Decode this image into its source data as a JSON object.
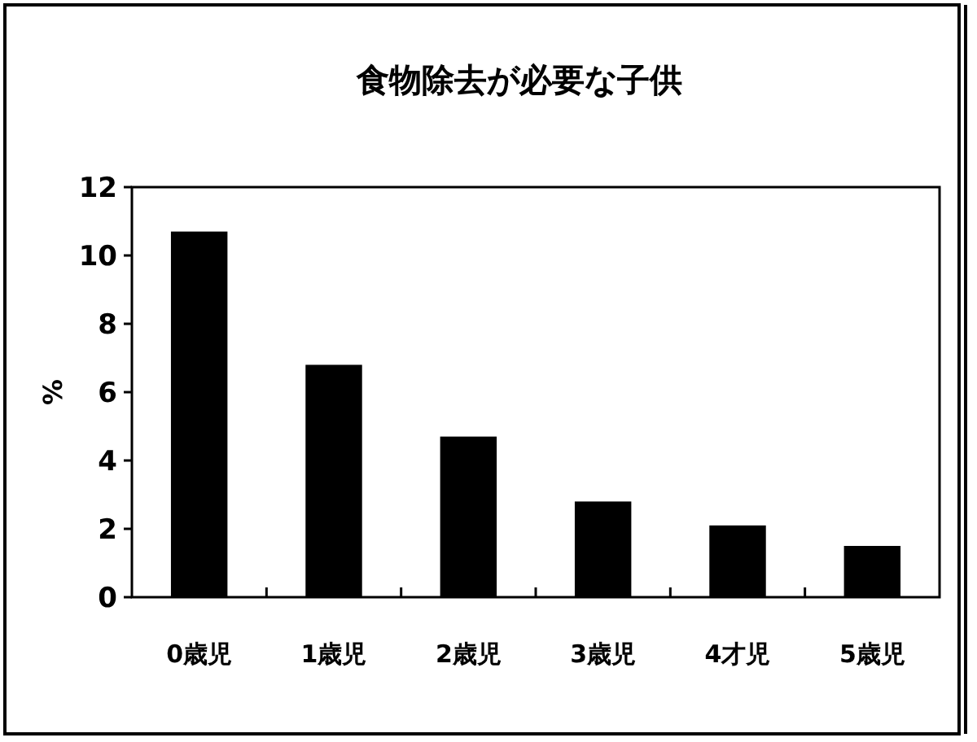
{
  "chart_data": {
    "type": "bar",
    "title": "食物除去が必要な子供",
    "ylabel": "%",
    "categories": [
      "0歳児",
      "1歳児",
      "2歳児",
      "3歳児",
      "4才児",
      "5歳児"
    ],
    "values": [
      10.7,
      6.8,
      4.7,
      2.8,
      2.1,
      1.5
    ],
    "color": "#000000",
    "ylim": [
      0,
      12
    ],
    "yticks": [
      0,
      2,
      4,
      6,
      8,
      10,
      12
    ]
  }
}
